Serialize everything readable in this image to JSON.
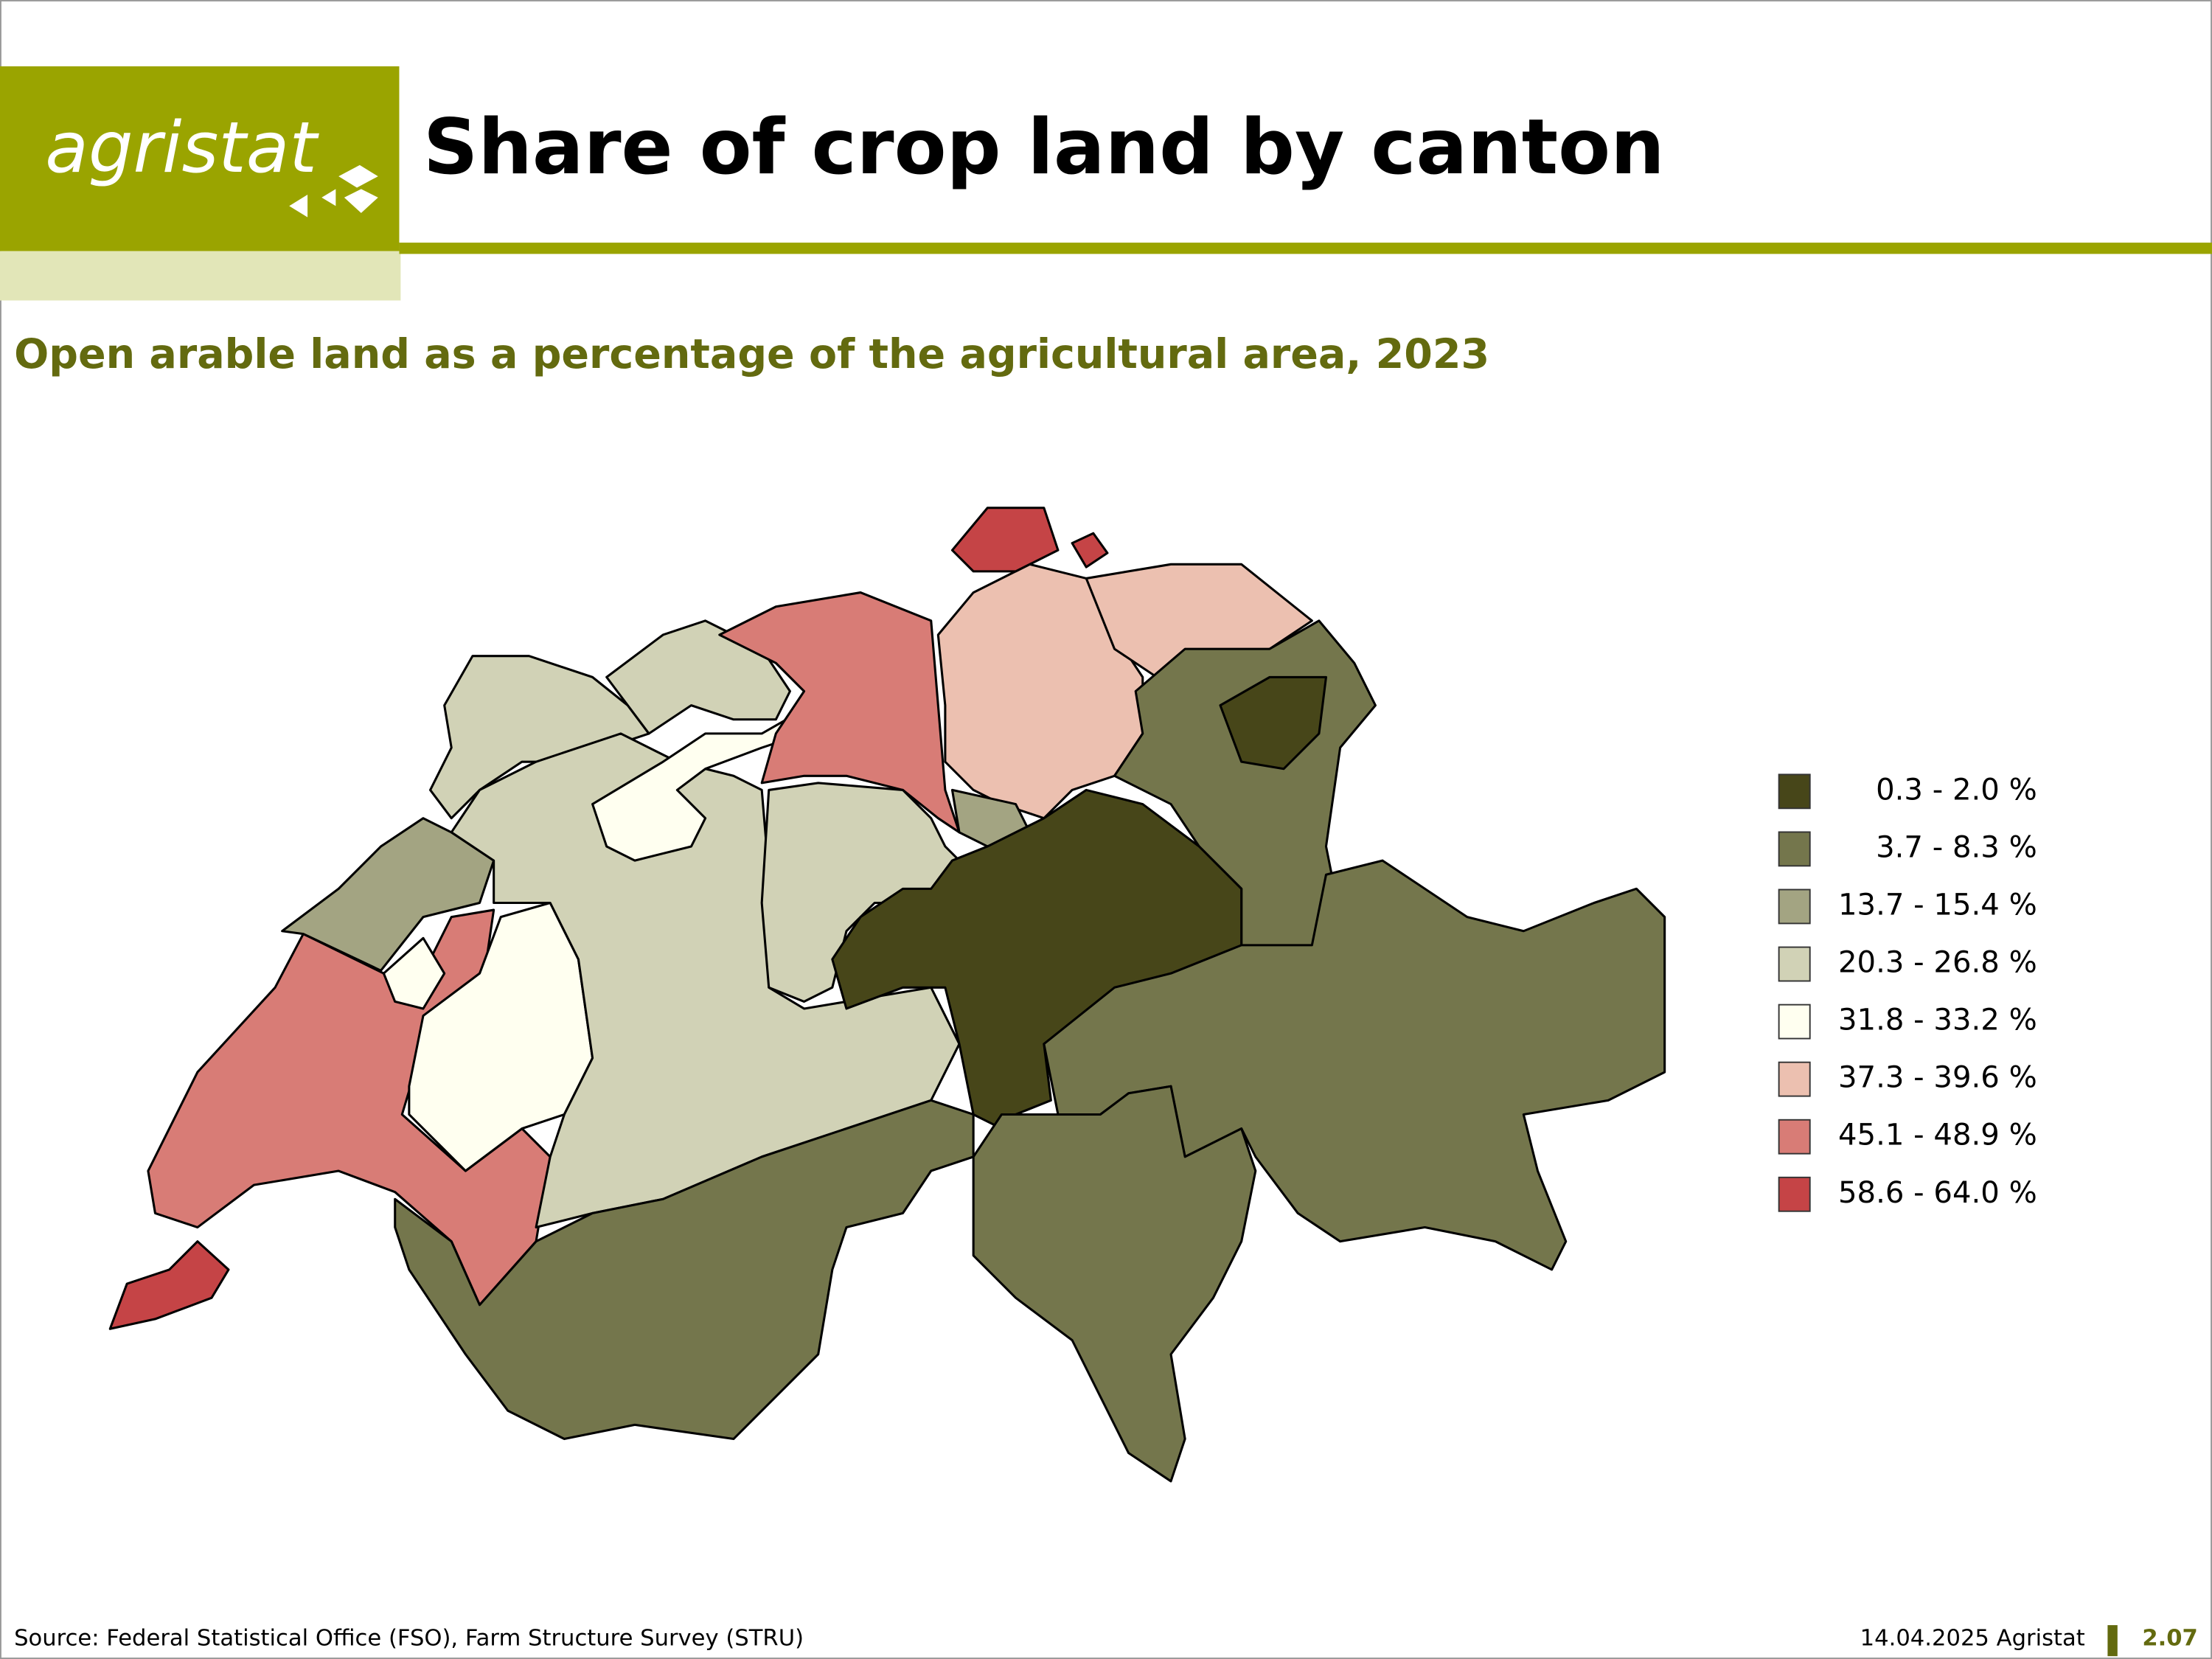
{
  "header": {
    "logo": "agristat",
    "title": "Share of crop land by canton"
  },
  "subtitle": "Open arable land as a percentage of the agricultural area, 2023",
  "legend": [
    {
      "label": "0.3 - 2.0 %",
      "color": "#474619"
    },
    {
      "label": "3.7 - 8.3 %",
      "color": "#74764c"
    },
    {
      "label": "13.7 - 15.4 %",
      "color": "#a3a482"
    },
    {
      "label": "20.3 - 26.8 %",
      "color": "#d1d2b6"
    },
    {
      "label": "31.8 - 33.2 %",
      "color": "#fffff0"
    },
    {
      "label": "37.3 - 39.6 %",
      "color": "#ecc0b0"
    },
    {
      "label": "45.1 - 48.9 %",
      "color": "#d87c76"
    },
    {
      "label": "58.6 - 64.0 %",
      "color": "#c54446"
    }
  ],
  "footer": {
    "source": "Source: Federal Statistical Office (FSO), Farm Structure Survey (STRU)",
    "date": "14.04.2025 Agristat",
    "page": "2.07"
  }
}
